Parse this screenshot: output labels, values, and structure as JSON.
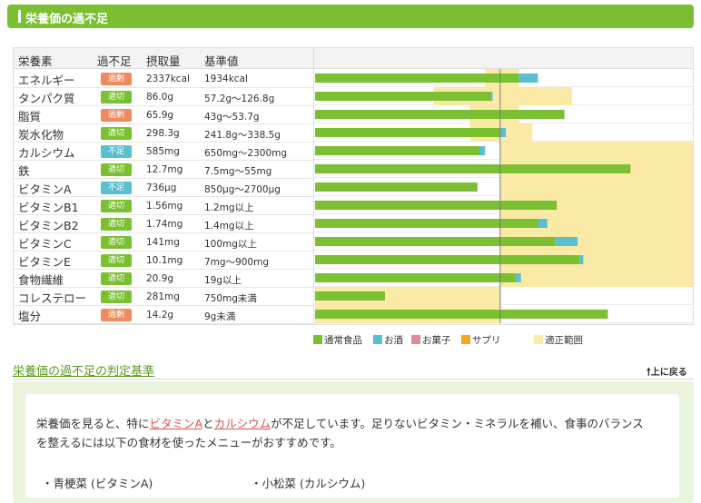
{
  "section": {
    "title": "栄養価の過不足"
  },
  "table": {
    "headers": {
      "nutrient": "栄養素",
      "status": "過不足",
      "intake": "摂取量",
      "reference": "基準値"
    },
    "rows": [
      {
        "name": "エネルギー",
        "status": "過剰",
        "status_type": "over",
        "intake": "2337kcal",
        "reference": "1934kcal"
      },
      {
        "name": "タンパク質",
        "status": "適切",
        "status_type": "ok",
        "intake": "86.0g",
        "reference": "57.2g～126.8g"
      },
      {
        "name": "脂質",
        "status": "過剰",
        "status_type": "over",
        "intake": "65.9g",
        "reference": "43g～53.7g"
      },
      {
        "name": "炭水化物",
        "status": "適切",
        "status_type": "ok",
        "intake": "298.3g",
        "reference": "241.8g～338.5g"
      },
      {
        "name": "カルシウム",
        "status": "不足",
        "status_type": "under",
        "intake": "585mg",
        "reference": "650mg～2300mg"
      },
      {
        "name": "鉄",
        "status": "適切",
        "status_type": "ok",
        "intake": "12.7mg",
        "reference": "7.5mg～55mg"
      },
      {
        "name": "ビタミンA",
        "status": "不足",
        "status_type": "under",
        "intake": "736μg",
        "reference": "850μg～2700μg"
      },
      {
        "name": "ビタミンB1",
        "status": "適切",
        "status_type": "ok",
        "intake": "1.56mg",
        "reference": "1.2mg以上"
      },
      {
        "name": "ビタミンB2",
        "status": "適切",
        "status_type": "ok",
        "intake": "1.74mg",
        "reference": "1.4mg以上"
      },
      {
        "name": "ビタミンC",
        "status": "適切",
        "status_type": "ok",
        "intake": "141mg",
        "reference": "100mg以上"
      },
      {
        "name": "ビタミンE",
        "status": "適切",
        "status_type": "ok",
        "intake": "10.1mg",
        "reference": "7mg～900mg"
      },
      {
        "name": "食物繊維",
        "status": "適切",
        "status_type": "ok",
        "intake": "20.9g",
        "reference": "19g以上"
      },
      {
        "name": "コレステロー",
        "status": "適切",
        "status_type": "ok",
        "intake": "281mg",
        "reference": "750mg未満"
      },
      {
        "name": "塩分",
        "status": "過剰",
        "status_type": "over",
        "intake": "14.2g",
        "reference": "9g未満"
      }
    ]
  },
  "status_colors": {
    "over": "#f08a5d",
    "ok": "#7bbf33",
    "under": "#5bbfcf"
  },
  "chart_data": {
    "type": "bar",
    "orientation": "horizontal",
    "stacked": true,
    "categories": [
      "エネルギー",
      "タンパク質",
      "脂質",
      "炭水化物",
      "カルシウム",
      "鉄",
      "ビタミンA",
      "ビタミンB1",
      "ビタミンB2",
      "ビタミンC",
      "ビタミンE",
      "食物繊維",
      "コレステロー",
      "塩分"
    ],
    "series": [
      {
        "name": "通常食品",
        "color": "#7bbf33",
        "values": [
          108,
          93,
          132,
          98,
          87,
          167,
          86,
          128,
          118,
          127,
          140,
          106,
          37,
          155
        ]
      },
      {
        "name": "お酒",
        "color": "#5bbfcf",
        "values": [
          10,
          1,
          0,
          3,
          3,
          0,
          0,
          0,
          5,
          12,
          2,
          3,
          0,
          0
        ]
      },
      {
        "name": "お菓子",
        "color": "#e08a9a",
        "values": [
          0,
          0,
          0,
          0,
          0,
          0,
          0,
          0,
          0,
          0,
          0,
          0,
          0,
          0
        ]
      },
      {
        "name": "サプリ",
        "color": "#f5a623",
        "values": [
          0,
          0,
          0,
          0,
          0,
          0,
          0,
          0,
          0,
          0,
          0,
          0,
          0,
          0
        ]
      }
    ],
    "range_series": {
      "name": "適正範囲",
      "color": "#fbe9a6",
      "ranges": [
        [
          90,
          108
        ],
        [
          63,
          136
        ],
        [
          82,
          108
        ],
        [
          82,
          115
        ],
        [
          98,
          200
        ],
        [
          98,
          200
        ],
        [
          98,
          200
        ],
        [
          98,
          200
        ],
        [
          98,
          200
        ],
        [
          98,
          200
        ],
        [
          98,
          200
        ],
        [
          98,
          200
        ],
        [
          0,
          98
        ],
        [
          0,
          98
        ]
      ]
    },
    "reference_line": 98,
    "xlim": [
      0,
      200
    ]
  },
  "legend": {
    "items": [
      {
        "label": "通常食品",
        "color": "#7bbf33"
      },
      {
        "label": "お酒",
        "color": "#5bbfcf"
      },
      {
        "label": "お菓子",
        "color": "#e08a9a"
      },
      {
        "label": "サプリ",
        "color": "#f5a623"
      },
      {
        "label": "適正範囲",
        "color": "#fbe9a6"
      }
    ]
  },
  "criteria": {
    "link_label": "栄養価の過不足の判定基準",
    "back_to_top": "上に戻る"
  },
  "advice": {
    "line1_pre": "栄養価を見ると、特に",
    "highlight1": "ビタミンA",
    "conj": "と",
    "highlight2": "カルシウム",
    "line1_post": "が不足しています。足りないビタミン・ミネラルを補い、食事のバランス",
    "line2": "を整えるには以下の食材を使ったメニューがおすすめです。",
    "recommendations": [
      "・青梗菜 (ビタミンA)",
      "・小松菜 (カルシウム)"
    ]
  }
}
